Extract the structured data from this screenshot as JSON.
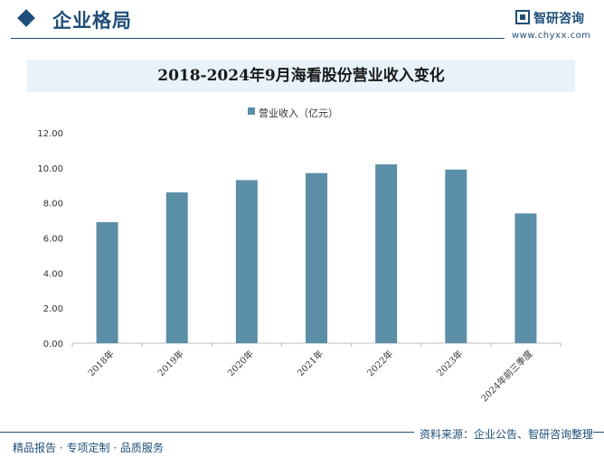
{
  "header": {
    "section_title": "企业格局",
    "brand_name": "智研咨询",
    "brand_url": "www.chyxx.com"
  },
  "colors": {
    "bar": "#5b8fa8",
    "brand": "#1f4e79",
    "title_band": "#e8f2fa"
  },
  "footer": {
    "slogan": "精品报告 · 专项定制 · 品质服务",
    "source": "资料来源：企业公告、智研咨询整理"
  },
  "chart_data": {
    "type": "bar",
    "title": "2018-2024年9月海看股份营业收入变化",
    "categories": [
      "2018年",
      "2019年",
      "2020年",
      "2021年",
      "2022年",
      "2023年",
      "2024年前三季度"
    ],
    "series": [
      {
        "name": "营业收入（亿元）",
        "values": [
          6.9,
          8.6,
          9.3,
          9.7,
          10.2,
          9.9,
          7.4
        ]
      }
    ],
    "ylim": [
      0,
      12
    ],
    "yticks": [
      "0.00",
      "2.00",
      "4.00",
      "6.00",
      "8.00",
      "10.00",
      "12.00"
    ],
    "legend_position": "top-center",
    "grid": false
  }
}
